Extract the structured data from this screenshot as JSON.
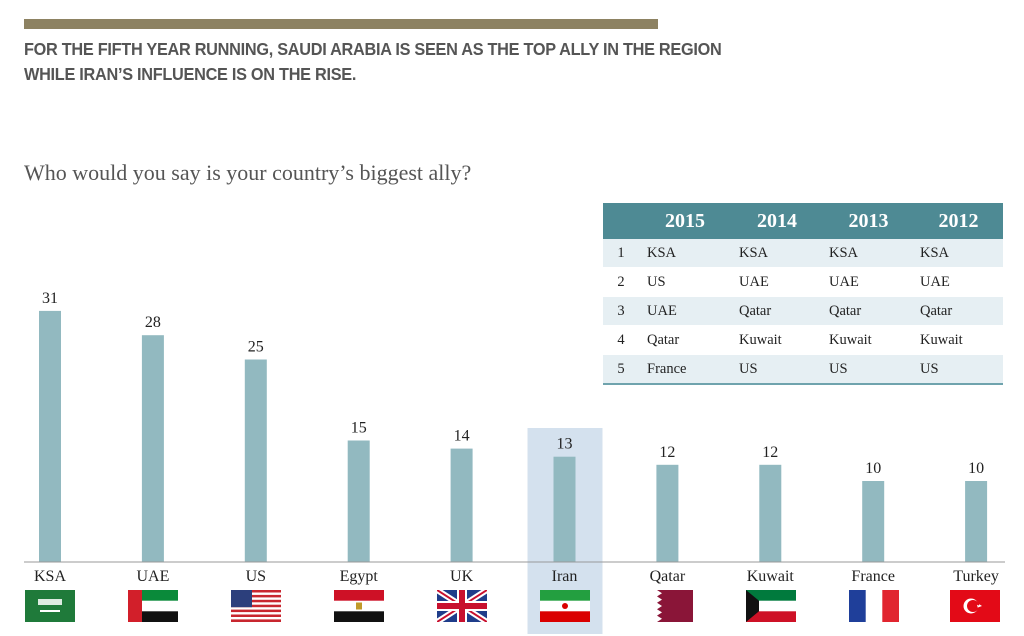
{
  "header": {
    "headline_line1": "FOR THE FIFTH YEAR RUNNING, SAUDI ARABIA IS SEEN AS THE TOP ALLY IN THE REGION",
    "headline_line2": "WHILE IRAN’S INFLUENCE IS ON THE RISE.",
    "question": "Who would you say is your country’s biggest ally?"
  },
  "colors": {
    "rule": "#8d8262",
    "bar": "#92b9c0",
    "highlight": "#d4e1ee",
    "table_header": "#4e8a94",
    "table_alt_row": "#e6eff3"
  },
  "rank_table": {
    "columns": [
      "2015",
      "2014",
      "2013",
      "2012"
    ],
    "rows": [
      {
        "rank": "1",
        "values": [
          "KSA",
          "KSA",
          "KSA",
          "KSA"
        ]
      },
      {
        "rank": "2",
        "values": [
          "US",
          "UAE",
          "UAE",
          "UAE"
        ]
      },
      {
        "rank": "3",
        "values": [
          "UAE",
          "Qatar",
          "Qatar",
          "Qatar"
        ]
      },
      {
        "rank": "4",
        "values": [
          "Qatar",
          "Kuwait",
          "Kuwait",
          "Kuwait"
        ]
      },
      {
        "rank": "5",
        "values": [
          "France",
          "US",
          "US",
          "US"
        ]
      }
    ]
  },
  "chart_data": {
    "type": "bar",
    "categories": [
      "KSA",
      "UAE",
      "US",
      "Egypt",
      "UK",
      "Iran",
      "Qatar",
      "Kuwait",
      "France",
      "Turkey"
    ],
    "values": [
      31,
      28,
      25,
      15,
      14,
      13,
      12,
      12,
      10,
      10
    ],
    "highlighted_category": "Iran",
    "title": "Who would you say is your country’s biggest ally?",
    "xlabel": "",
    "ylabel": "",
    "ylim": [
      0,
      35
    ],
    "grid": false,
    "legend": "none"
  },
  "flags": [
    {
      "country": "KSA",
      "icon": "saudi-arabia-flag-icon"
    },
    {
      "country": "UAE",
      "icon": "uae-flag-icon"
    },
    {
      "country": "US",
      "icon": "us-flag-icon"
    },
    {
      "country": "Egypt",
      "icon": "egypt-flag-icon"
    },
    {
      "country": "UK",
      "icon": "uk-flag-icon"
    },
    {
      "country": "Iran",
      "icon": "iran-flag-icon"
    },
    {
      "country": "Qatar",
      "icon": "qatar-flag-icon"
    },
    {
      "country": "Kuwait",
      "icon": "kuwait-flag-icon"
    },
    {
      "country": "France",
      "icon": "france-flag-icon"
    },
    {
      "country": "Turkey",
      "icon": "turkey-flag-icon"
    }
  ]
}
